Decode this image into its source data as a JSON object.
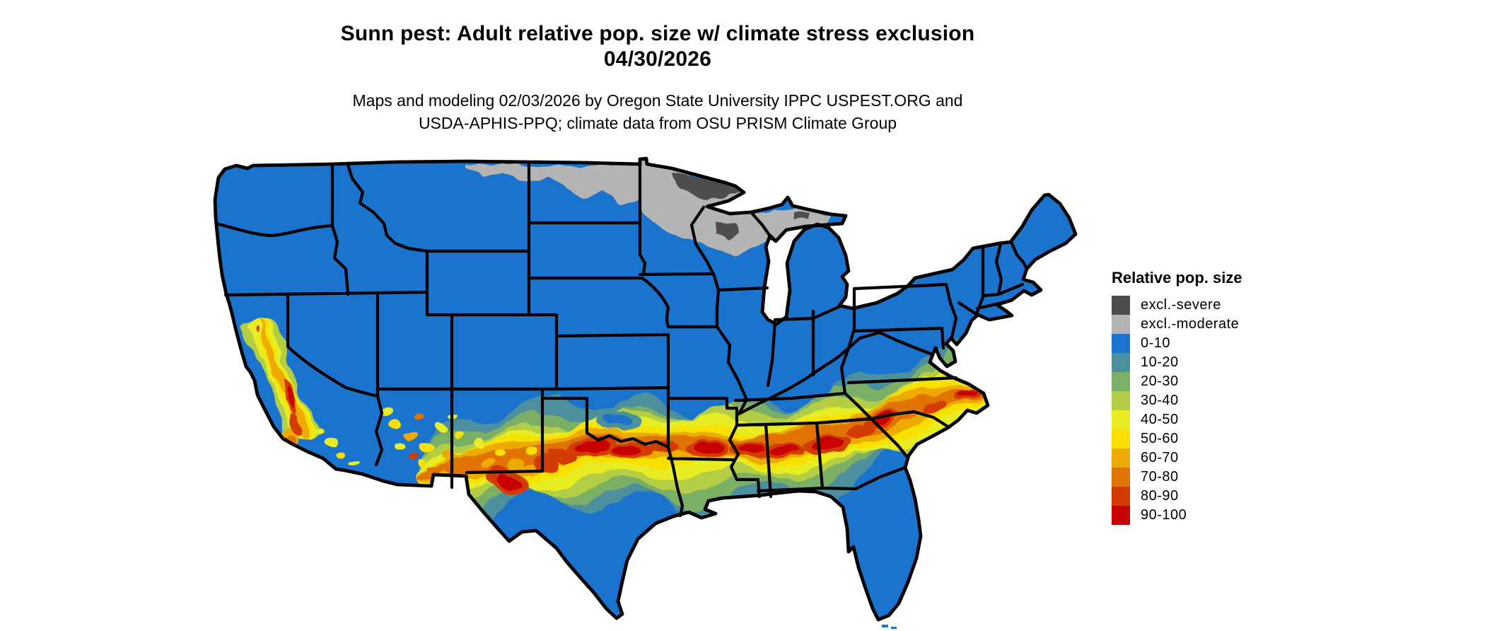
{
  "title": {
    "line1": "Sunn pest: Adult relative pop. size w/ climate stress exclusion",
    "line2": "04/30/2026"
  },
  "subtitle": {
    "line1": "Maps and modeling 02/03/2026 by Oregon State University IPPC USPEST.ORG and",
    "line2": "USDA-APHIS-PPQ; climate data from OSU PRISM Climate Group"
  },
  "legend": {
    "title": "Relative pop. size",
    "items": [
      {
        "key": "excl_severe",
        "label": "excl.-severe",
        "color": "#4d4d4d"
      },
      {
        "key": "excl_moderate",
        "label": "excl.-moderate",
        "color": "#b4b4b4"
      },
      {
        "key": "v0",
        "label": "0-10",
        "color": "#1a73cc"
      },
      {
        "key": "v10",
        "label": "10-20",
        "color": "#4b909c"
      },
      {
        "key": "v20",
        "label": "20-30",
        "color": "#7caf66"
      },
      {
        "key": "v30",
        "label": "30-40",
        "color": "#b3ce44"
      },
      {
        "key": "v40",
        "label": "40-50",
        "color": "#e8ec20"
      },
      {
        "key": "v50",
        "label": "50-60",
        "color": "#f8e000"
      },
      {
        "key": "v60",
        "label": "60-70",
        "color": "#edaa00"
      },
      {
        "key": "v70",
        "label": "70-80",
        "color": "#e17300"
      },
      {
        "key": "v80",
        "label": "80-90",
        "color": "#d33b00"
      },
      {
        "key": "v90",
        "label": "90-100",
        "color": "#c90000"
      }
    ]
  },
  "map": {
    "region": "Contiguous United States",
    "background_color": "#ffffff",
    "border_color": "#000000"
  }
}
